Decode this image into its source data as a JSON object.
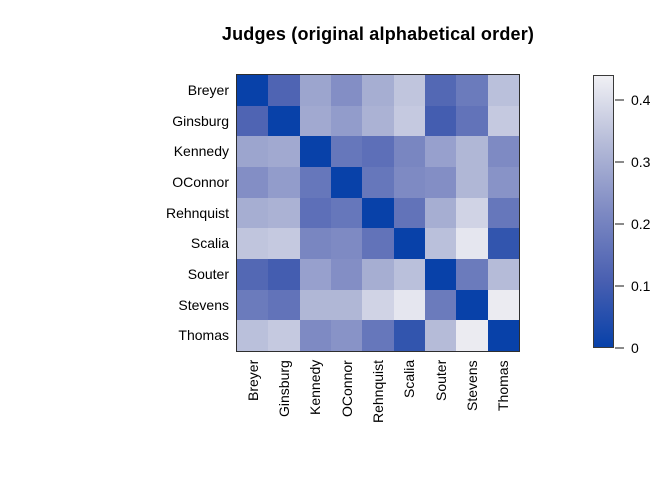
{
  "chart_data": {
    "type": "heatmap",
    "title": "Judges (original alphabetical order)",
    "row_labels": [
      "Breyer",
      "Ginsburg",
      "Kennedy",
      "OConnor",
      "Rehnquist",
      "Scalia",
      "Souter",
      "Stevens",
      "Thomas"
    ],
    "col_labels": [
      "Breyer",
      "Ginsburg",
      "Kennedy",
      "OConnor",
      "Rehnquist",
      "Scalia",
      "Souter",
      "Stevens",
      "Thomas"
    ],
    "matrix": [
      [
        0.0,
        0.12,
        0.28,
        0.23,
        0.3,
        0.35,
        0.13,
        0.18,
        0.34
      ],
      [
        0.12,
        0.0,
        0.29,
        0.26,
        0.31,
        0.36,
        0.1,
        0.16,
        0.36
      ],
      [
        0.28,
        0.29,
        0.0,
        0.17,
        0.15,
        0.21,
        0.27,
        0.32,
        0.22
      ],
      [
        0.23,
        0.26,
        0.17,
        0.0,
        0.17,
        0.22,
        0.23,
        0.32,
        0.24
      ],
      [
        0.3,
        0.31,
        0.15,
        0.17,
        0.0,
        0.16,
        0.3,
        0.38,
        0.17
      ],
      [
        0.35,
        0.36,
        0.21,
        0.22,
        0.16,
        0.0,
        0.34,
        0.42,
        0.07
      ],
      [
        0.13,
        0.1,
        0.27,
        0.23,
        0.3,
        0.34,
        0.0,
        0.18,
        0.33
      ],
      [
        0.18,
        0.16,
        0.32,
        0.32,
        0.38,
        0.42,
        0.18,
        0.0,
        0.43
      ],
      [
        0.34,
        0.36,
        0.22,
        0.24,
        0.17,
        0.07,
        0.33,
        0.43,
        0.0
      ]
    ],
    "value_range": [
      0,
      0.44
    ],
    "grid": false,
    "colorbar": {
      "position": "right",
      "ticks": [
        0,
        0.1,
        0.2,
        0.3,
        0.4
      ],
      "tick_labels": [
        "0",
        "0.1",
        "0.2",
        "0.3",
        "0.4"
      ],
      "color_stops": [
        {
          "v": 0.0,
          "color": "#0841a9"
        },
        {
          "v": 0.11,
          "color": "#4a60b1"
        },
        {
          "v": 0.22,
          "color": "#7e8ac3"
        },
        {
          "v": 0.33,
          "color": "#b5bbd8"
        },
        {
          "v": 0.44,
          "color": "#f0f0f4"
        }
      ]
    },
    "colors": {
      "frame": "#2e2e2e",
      "tick": "#8a8a8a",
      "text": "#000000",
      "background": "#ffffff"
    }
  }
}
